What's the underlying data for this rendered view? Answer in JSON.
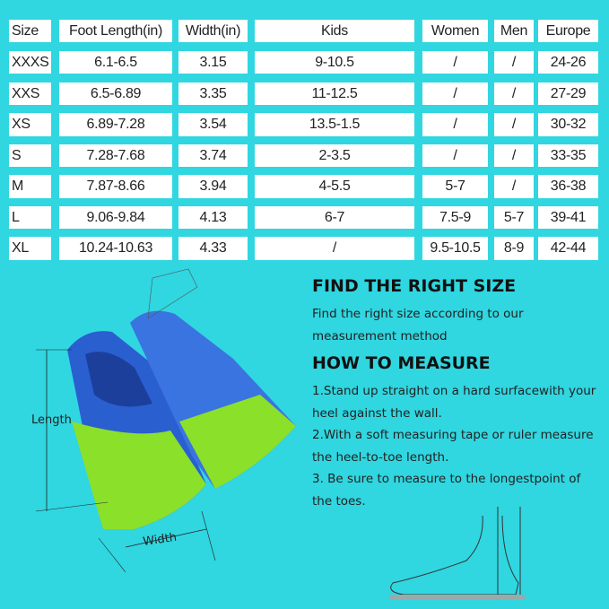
{
  "table": {
    "headers": [
      "Size",
      "Foot Length(in)",
      "Width(in)",
      "Kids",
      "Women",
      "Men",
      "Europe"
    ],
    "rows": [
      [
        "XXXS",
        "6.1-6.5",
        "3.15",
        "9-10.5",
        "/",
        "/",
        "24-26"
      ],
      [
        "XXS",
        "6.5-6.89",
        "3.35",
        "11-12.5",
        "/",
        "/",
        "27-29"
      ],
      [
        "XS",
        "6.89-7.28",
        "3.54",
        "13.5-1.5",
        "/",
        "/",
        "30-32"
      ],
      [
        "S",
        "7.28-7.68",
        "3.74",
        "2-3.5",
        "/",
        "/",
        "33-35"
      ],
      [
        "M",
        "7.87-8.66",
        "3.94",
        "4-5.5",
        "5-7",
        "/",
        "36-38"
      ],
      [
        "L",
        "9.06-9.84",
        "4.13",
        "6-7",
        "7.5-9",
        "5-7",
        "39-41"
      ],
      [
        "XL",
        "10.24-10.63",
        "4.33",
        "/",
        "9.5-10.5",
        "8-9",
        "42-44"
      ]
    ]
  },
  "find_size": {
    "title": "FIND THE RIGHT SIZE",
    "text": "Find the right size according to our measurement method"
  },
  "how_to": {
    "title": "HOW TO MEASURE",
    "steps": [
      "1.Stand up straight on a hard surfacewith your heel against the wall.",
      "2.With a soft measuring tape or ruler measure the heel-to-toe length.",
      "3. Be sure to measure to the longestpoint of the toes."
    ]
  },
  "diagram": {
    "length_label": "Length",
    "width_label": "Width"
  },
  "colors": {
    "background": "#30d6e0",
    "fin_blue": "#2a5fd0",
    "fin_green": "#8be02a"
  }
}
